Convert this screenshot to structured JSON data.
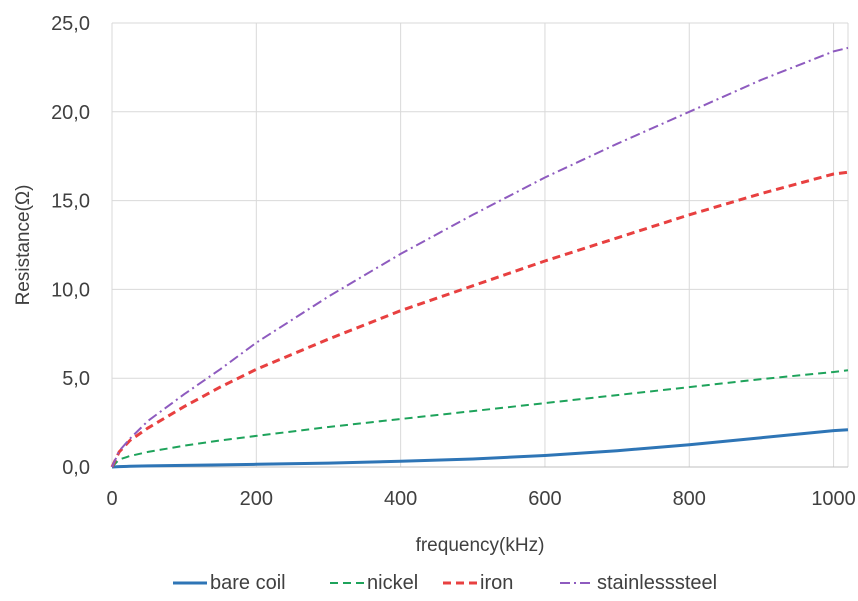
{
  "chart_data": {
    "type": "line",
    "title": "",
    "xlabel": "frequency(kHz)",
    "ylabel": "Resistance(Ω)",
    "xlim": [
      0,
      1020
    ],
    "ylim": [
      0,
      25
    ],
    "xticks": [
      0,
      200,
      400,
      600,
      800,
      1000
    ],
    "yticks": [
      0,
      5,
      10,
      15,
      20,
      25
    ],
    "xtick_labels": [
      "0",
      "200",
      "400",
      "600",
      "800",
      "1000"
    ],
    "ytick_labels": [
      "0,0",
      "5,0",
      "10,0",
      "15,0",
      "20,0",
      "25,0"
    ],
    "grid": true,
    "legend_position": "bottom",
    "x": [
      0,
      10,
      25,
      50,
      100,
      150,
      200,
      300,
      400,
      500,
      600,
      700,
      800,
      900,
      1000,
      1020
    ],
    "series": [
      {
        "name": "bare coil",
        "color": "#2e75b6",
        "style": "solid",
        "values": [
          0,
          0.02,
          0.04,
          0.06,
          0.09,
          0.12,
          0.15,
          0.22,
          0.32,
          0.45,
          0.65,
          0.92,
          1.25,
          1.65,
          2.05,
          2.1
        ]
      },
      {
        "name": "nickel",
        "color": "#1ea35b",
        "style": "dashed",
        "values": [
          0,
          0.42,
          0.62,
          0.85,
          1.2,
          1.5,
          1.75,
          2.25,
          2.7,
          3.15,
          3.6,
          4.05,
          4.5,
          4.95,
          5.35,
          5.45
        ]
      },
      {
        "name": "iron",
        "color": "#e84040",
        "style": "dashed",
        "values": [
          0,
          0.85,
          1.5,
          2.2,
          3.4,
          4.5,
          5.5,
          7.2,
          8.8,
          10.2,
          11.6,
          12.9,
          14.2,
          15.4,
          16.5,
          16.6
        ]
      },
      {
        "name": "stainlesssteel",
        "color": "#8e5bbf",
        "style": "dashdot",
        "values": [
          0,
          0.9,
          1.6,
          2.6,
          4.1,
          5.5,
          7.0,
          9.6,
          12.0,
          14.2,
          16.3,
          18.2,
          20.0,
          21.8,
          23.4,
          23.6
        ]
      }
    ]
  }
}
